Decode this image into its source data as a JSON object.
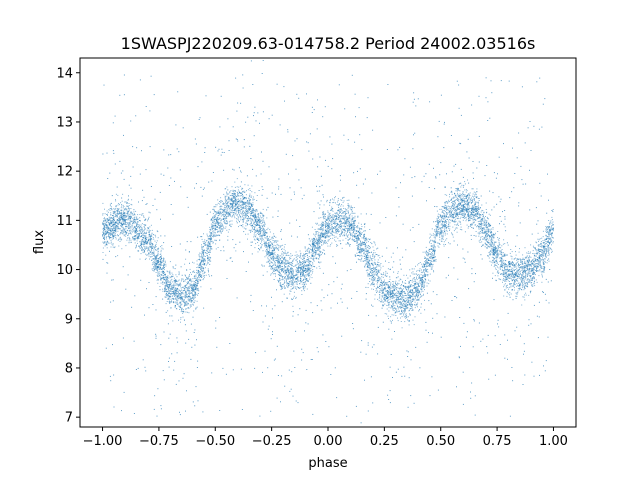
{
  "chart_data": {
    "type": "scatter",
    "title": "1SWASPJ220209.63-014758.2 Period 24002.03516s",
    "xlabel": "phase",
    "ylabel": "flux",
    "xlim": [
      -1.1,
      1.1
    ],
    "ylim": [
      6.8,
      14.3
    ],
    "x_ticks": [
      -1.0,
      -0.75,
      -0.5,
      -0.25,
      0.0,
      0.25,
      0.5,
      0.75,
      1.0
    ],
    "x_tick_labels": [
      "−1.00",
      "−0.75",
      "−0.50",
      "−0.25",
      "0.00",
      "0.25",
      "0.50",
      "0.75",
      "1.00"
    ],
    "y_ticks": [
      7,
      8,
      9,
      10,
      11,
      12,
      13,
      14
    ],
    "y_tick_labels": [
      "7",
      "8",
      "9",
      "10",
      "11",
      "12",
      "13",
      "14"
    ],
    "grid": false,
    "point_color": "#1f77b4",
    "series": [
      {
        "x_range": [
          -1.0,
          1.0
        ],
        "curve_x": [
          -1.0,
          -0.9,
          -0.8,
          -0.75,
          -0.7,
          -0.65,
          -0.6,
          -0.55,
          -0.5,
          -0.45,
          -0.4,
          -0.35,
          -0.3,
          -0.25,
          -0.2,
          -0.15,
          -0.1,
          -0.05,
          0.0,
          0.05,
          0.1,
          0.15,
          0.2,
          0.25,
          0.3,
          0.35,
          0.4,
          0.45,
          0.5,
          0.55,
          0.6,
          0.65,
          0.7,
          0.75,
          0.8,
          0.85,
          0.9,
          0.95,
          1.0
        ],
        "curve_y": [
          10.8,
          11.0,
          10.6,
          10.1,
          9.6,
          9.45,
          9.6,
          10.2,
          10.9,
          11.2,
          11.35,
          11.2,
          10.8,
          10.3,
          10.0,
          9.85,
          10.0,
          10.5,
          10.9,
          11.0,
          10.9,
          10.5,
          10.0,
          9.6,
          9.45,
          9.4,
          9.6,
          10.2,
          10.9,
          11.2,
          11.3,
          11.2,
          10.8,
          10.3,
          9.95,
          9.85,
          10.0,
          10.3,
          10.8
        ],
        "band_width": 0.4,
        "outlier_range": [
          7.0,
          14.0
        ]
      }
    ]
  }
}
